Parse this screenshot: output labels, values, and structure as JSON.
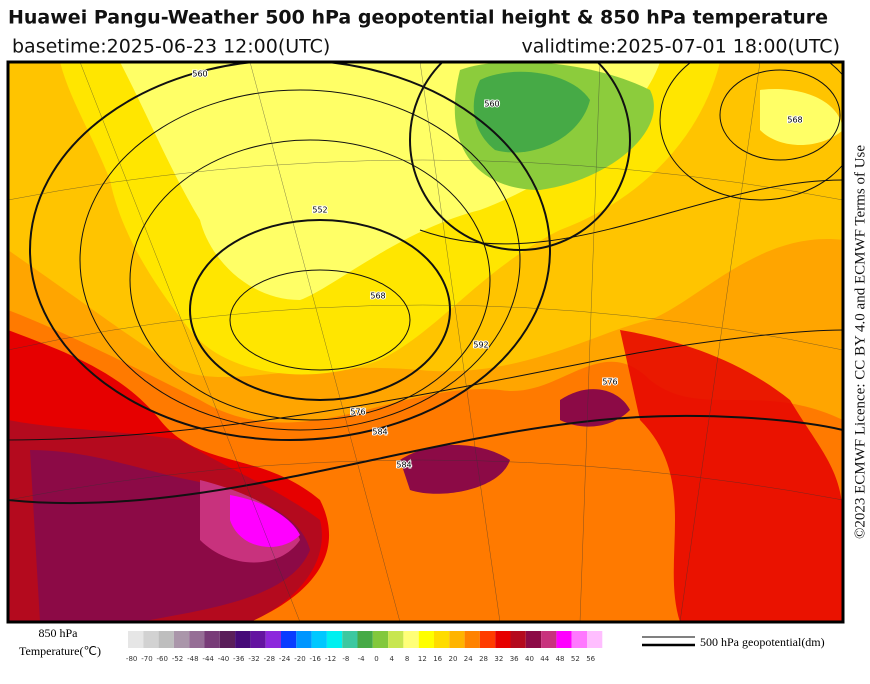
{
  "header": {
    "title": "Huawei Pangu-Weather 500 hPa geopotential height & 850 hPa temperature",
    "basetime": "basetime:2025-06-23 12:00(UTC)",
    "validtime": "validtime:2025-07-01 18:00(UTC)"
  },
  "license": "©2023 ECMWF Licence: CC BY 4.0 and ECMWF Terms of Use",
  "map": {
    "contour_labels": [
      "560",
      "552",
      "568",
      "576",
      "584",
      "560",
      "576",
      "584",
      "592",
      "568"
    ]
  },
  "colorbar": {
    "title": "850 hPa",
    "subtitle": "Temperature(℃)",
    "ticks": [
      -80,
      -70,
      -60,
      -52,
      -48,
      -44,
      -40,
      -36,
      -32,
      -28,
      -24,
      -20,
      -16,
      -12,
      -8,
      -4,
      0,
      4,
      8,
      12,
      16,
      20,
      24,
      28,
      32,
      36,
      40,
      44,
      48,
      52,
      56
    ],
    "colors": [
      "#e6e6e6",
      "#d2d2d2",
      "#bebebe",
      "#aa96aa",
      "#966e96",
      "#783c78",
      "#5a1e5a",
      "#460a78",
      "#6414a0",
      "#8c28dc",
      "#0a3cff",
      "#0096ff",
      "#00c8ff",
      "#00f0f0",
      "#3cc8a0",
      "#46aa46",
      "#82c83c",
      "#c8e650",
      "#ffff78",
      "#ffff00",
      "#ffdc00",
      "#ffb400",
      "#ff8200",
      "#ff3c00",
      "#e60000",
      "#b40a1e",
      "#8c0a46",
      "#c8327d",
      "#ff00ff",
      "#ff78ff",
      "#ffbeff"
    ]
  },
  "legend": {
    "label": "500 hPa geopotential(dm)"
  }
}
